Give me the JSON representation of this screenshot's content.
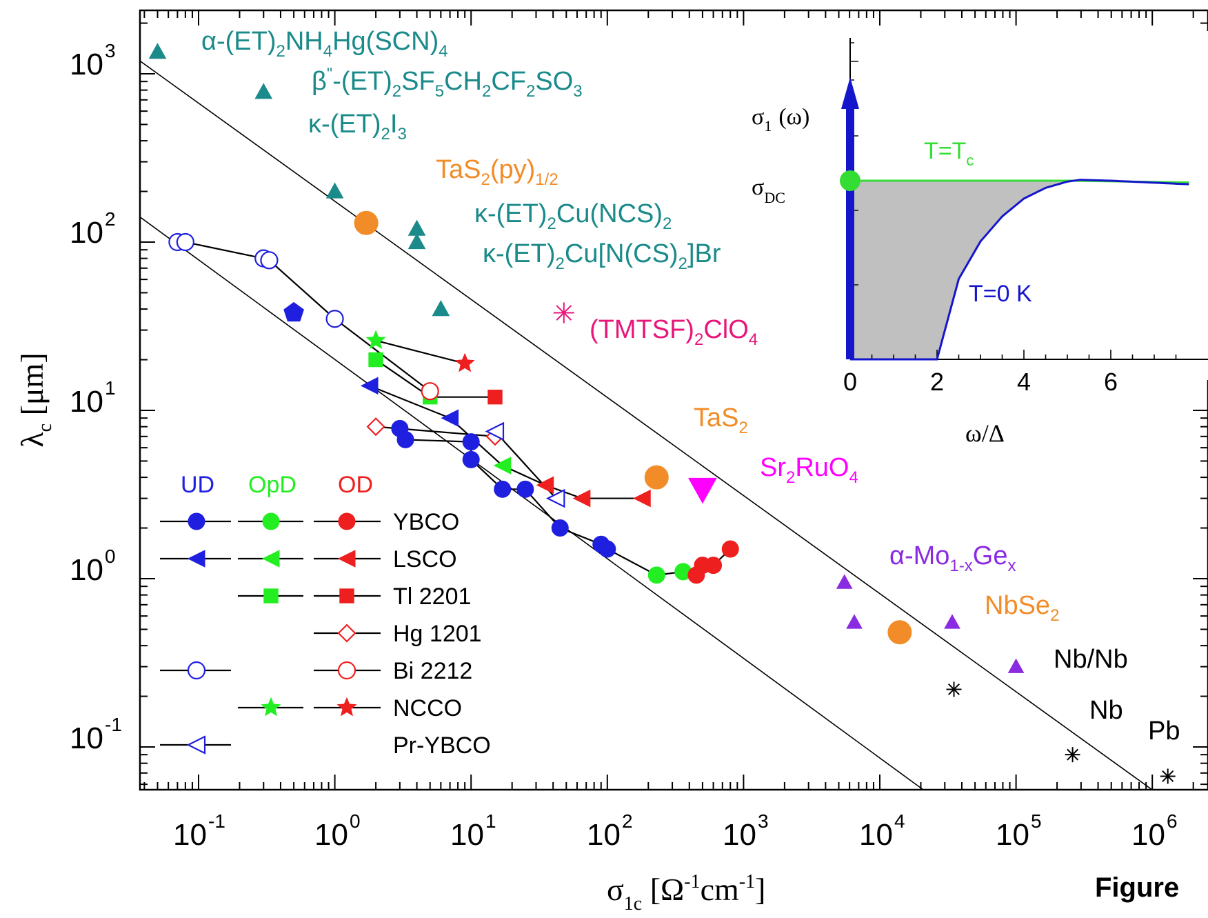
{
  "figure_caption": "Figure",
  "chart_data": [
    {
      "type": "scatter",
      "title": "",
      "xlabel": "σ1c [Ω-1cm-1]",
      "ylabel": "λc [μm]",
      "x_scale": "log",
      "y_scale": "log",
      "xlim": [
        0.03,
        1500000
      ],
      "ylim": [
        0.05,
        2000
      ],
      "x_ticks": [
        "10-1",
        "100",
        "101",
        "102",
        "103",
        "104",
        "105",
        "106"
      ],
      "y_ticks": [
        "10-1",
        "100",
        "101",
        "102",
        "103"
      ],
      "grid": false,
      "colors": {
        "UD": "#1f1fe0",
        "OpD": "#22ee22",
        "OD": "#ee1f1f",
        "organics": "#1a8a8a",
        "TaS": "#f28c28",
        "TMTSF": "#e8157a",
        "Sr2RuO4": "#ff00ff",
        "MoGe": "#8a2be2",
        "elements": "#000000"
      },
      "legend": {
        "placement": "bottom-left",
        "columns": [
          "UD",
          "OpD",
          "OD"
        ],
        "rows": [
          {
            "name": "YBCO",
            "marker": "circle-filled",
            "columns": [
              "UD",
              "OpD",
              "OD"
            ]
          },
          {
            "name": "LSCO",
            "marker": "triangle-left-filled",
            "columns": [
              "UD",
              "OpD",
              "OD"
            ]
          },
          {
            "name": "Tl 2201",
            "marker": "square-filled",
            "columns": [
              "OpD",
              "OD"
            ]
          },
          {
            "name": "Hg 1201",
            "marker": "diamond-open",
            "columns": [
              "OD"
            ]
          },
          {
            "name": "Bi 2212",
            "marker": "circle-open",
            "columns": [
              "UD",
              "OD"
            ]
          },
          {
            "name": "NCCO",
            "marker": "star-filled",
            "columns": [
              "OpD",
              "OD"
            ]
          },
          {
            "name": "Pr-YBCO",
            "marker": "triangle-left-open",
            "columns": [
              "UD"
            ]
          }
        ]
      },
      "guide_lines": [
        {
          "from": [
            0.03,
            1350
          ],
          "to": [
            1200000,
            0.05
          ]
        },
        {
          "from": [
            0.03,
            160
          ],
          "to": [
            25000,
            0.05
          ]
        }
      ],
      "series": [
        {
          "name": "YBCO",
          "marker": "circle-filled",
          "connected": true,
          "points": [
            {
              "x": 3,
              "y": 7.8,
              "doping": "UD"
            },
            {
              "x": 3.3,
              "y": 6.7,
              "doping": "UD"
            },
            {
              "x": 10,
              "y": 6.5,
              "doping": "UD"
            },
            {
              "x": 10,
              "y": 5.1,
              "doping": "UD"
            },
            {
              "x": 17,
              "y": 3.4,
              "doping": "UD"
            },
            {
              "x": 25,
              "y": 3.4,
              "doping": "UD"
            },
            {
              "x": 45,
              "y": 2.0,
              "doping": "UD"
            },
            {
              "x": 90,
              "y": 1.6,
              "doping": "UD"
            },
            {
              "x": 100,
              "y": 1.5,
              "doping": "UD"
            },
            {
              "x": 230,
              "y": 1.05,
              "doping": "OpD"
            },
            {
              "x": 360,
              "y": 1.1,
              "doping": "OpD"
            },
            {
              "x": 450,
              "y": 1.05,
              "doping": "OD"
            },
            {
              "x": 500,
              "y": 1.2,
              "doping": "OD"
            },
            {
              "x": 600,
              "y": 1.2,
              "doping": "OD"
            },
            {
              "x": 800,
              "y": 1.5,
              "doping": "OD"
            }
          ]
        },
        {
          "name": "LSCO",
          "marker": "triangle-left-filled",
          "connected": true,
          "points": [
            {
              "x": 1.8,
              "y": 14,
              "doping": "UD"
            },
            {
              "x": 7,
              "y": 9,
              "doping": "UD"
            },
            {
              "x": 17,
              "y": 4.7,
              "doping": "OpD"
            },
            {
              "x": 35,
              "y": 3.6,
              "doping": "OD"
            },
            {
              "x": 65,
              "y": 3.0,
              "doping": "OD"
            },
            {
              "x": 180,
              "y": 3.0,
              "doping": "OD"
            }
          ]
        },
        {
          "name": "Tl 2201",
          "marker": "square-filled",
          "connected": true,
          "points": [
            {
              "x": 2,
              "y": 20,
              "doping": "OpD"
            },
            {
              "x": 5,
              "y": 12,
              "doping": "OpD"
            },
            {
              "x": 15,
              "y": 12,
              "doping": "OD"
            }
          ]
        },
        {
          "name": "Hg 1201",
          "marker": "diamond-open",
          "connected": true,
          "points": [
            {
              "x": 2,
              "y": 8,
              "doping": "OD"
            },
            {
              "x": 15,
              "y": 7,
              "doping": "OD"
            }
          ]
        },
        {
          "name": "Bi 2212",
          "marker": "circle-open",
          "connected": true,
          "points": [
            {
              "x": 0.07,
              "y": 100,
              "doping": "UD"
            },
            {
              "x": 0.08,
              "y": 100,
              "doping": "UD"
            },
            {
              "x": 0.3,
              "y": 80,
              "doping": "UD"
            },
            {
              "x": 0.33,
              "y": 78,
              "doping": "UD"
            },
            {
              "x": 1,
              "y": 35,
              "doping": "UD"
            },
            {
              "x": 5,
              "y": 13,
              "doping": "OD"
            }
          ]
        },
        {
          "name": "NCCO",
          "marker": "star-filled",
          "connected": true,
          "points": [
            {
              "x": 2,
              "y": 26,
              "doping": "OpD"
            },
            {
              "x": 9,
              "y": 19,
              "doping": "OD"
            }
          ]
        },
        {
          "name": "Pr-YBCO",
          "marker": "triangle-left-open",
          "connected": true,
          "points": [
            {
              "x": 15,
              "y": 7.5,
              "doping": "UD"
            },
            {
              "x": 42,
              "y": 3.0,
              "doping": "UD"
            }
          ]
        },
        {
          "name": "Bi 2212 (pentagon)",
          "marker": "pentagon-filled",
          "connected": false,
          "points": [
            {
              "x": 0.5,
              "y": 38,
              "doping": "UD"
            }
          ]
        },
        {
          "name": "α-(ET)2NH4Hg(SCN)4",
          "marker": "triangle-up-filled",
          "color": "organics",
          "points": [
            {
              "x": 0.05,
              "y": 1350
            }
          ]
        },
        {
          "name": "β''-(ET)2SF5CH2CF2SO3",
          "marker": "triangle-up-filled",
          "color": "organics",
          "points": [
            {
              "x": 0.3,
              "y": 780
            }
          ]
        },
        {
          "name": "κ-(ET)2I3",
          "marker": "triangle-up-filled",
          "color": "organics",
          "points": [
            {
              "x": 1,
              "y": 200
            }
          ]
        },
        {
          "name": "κ-(ET)2Cu(NCS)2",
          "marker": "triangle-up-filled",
          "color": "organics",
          "points": [
            {
              "x": 4,
              "y": 120
            }
          ]
        },
        {
          "name": "κ-(ET)2Cu[N(CS)2]Br",
          "marker": "triangle-up-filled",
          "color": "organics",
          "points": [
            {
              "x": 4,
              "y": 100
            }
          ]
        },
        {
          "name": "organic (unlabeled)",
          "marker": "triangle-up-filled",
          "color": "organics",
          "points": [
            {
              "x": 6,
              "y": 40
            }
          ]
        },
        {
          "name": "TaS2(py)1/2",
          "marker": "circle-filled",
          "color": "TaS",
          "points": [
            {
              "x": 1.7,
              "y": 130
            }
          ]
        },
        {
          "name": "(TMTSF)2ClO4",
          "marker": "asterisk",
          "color": "TMTSF",
          "points": [
            {
              "x": 48,
              "y": 38
            }
          ]
        },
        {
          "name": "TaS2",
          "marker": "circle-filled",
          "color": "TaS",
          "points": [
            {
              "x": 230,
              "y": 4.0
            }
          ]
        },
        {
          "name": "Sr2RuO4",
          "marker": "triangle-down-filled",
          "color": "Sr2RuO4",
          "points": [
            {
              "x": 500,
              "y": 3.4
            }
          ]
        },
        {
          "name": "α-Mo1-xGex",
          "marker": "triangle-up-filled",
          "color": "MoGe",
          "points": [
            {
              "x": 5500,
              "y": 0.95
            },
            {
              "x": 6500,
              "y": 0.55
            },
            {
              "x": 34000,
              "y": 0.55
            }
          ]
        },
        {
          "name": "NbSe2",
          "marker": "circle-filled",
          "color": "TaS",
          "points": [
            {
              "x": 14000,
              "y": 0.48
            }
          ]
        },
        {
          "name": "Nb/Nb",
          "marker": "triangle-up-filled",
          "color": "MoGe",
          "points": [
            {
              "x": 100000,
              "y": 0.3
            }
          ]
        },
        {
          "name": "Nb (unlabeled asterisk)",
          "marker": "asterisk",
          "color": "elements",
          "points": [
            {
              "x": 35000,
              "y": 0.22
            }
          ]
        },
        {
          "name": "Nb",
          "marker": "asterisk",
          "color": "elements",
          "points": [
            {
              "x": 260000,
              "y": 0.09
            }
          ]
        },
        {
          "name": "Pb",
          "marker": "asterisk",
          "color": "elements",
          "points": [
            {
              "x": 1300000,
              "y": 0.067
            }
          ]
        }
      ],
      "annotations": {
        "a1": "α-(ET)",
        "a1s": "2",
        "a1b": "NH",
        "a1s2": "4",
        "a1c": "Hg(SCN)",
        "a1s3": "4",
        "b1": "β",
        "b1p": "''",
        "b1b": "-(ET)",
        "b1s": "2",
        "b1c": "SF",
        "b1s2": "5",
        "b1d": "CH",
        "b1s3": "2",
        "b1e": "CF",
        "b1s4": "2",
        "b1f": "SO",
        "b1s5": "3",
        "k1": "κ-(ET)",
        "k1s": "2",
        "k1b": "I",
        "k1s2": "3",
        "t1": "TaS",
        "t1s": "2",
        "t1b": "(py)",
        "t1s2": "1/2",
        "k2": "κ-(ET)",
        "k2s": "2",
        "k2b": "Cu(NCS)",
        "k2s2": "2",
        "k3": "κ-(ET)",
        "k3s": "2",
        "k3b": "Cu[N(CS)",
        "k3s2": "2",
        "k3c": "]Br",
        "tm": "(TMTSF)",
        "tms": "2",
        "tmb": "ClO",
        "tms2": "4",
        "ta": "TaS",
        "tas": "2",
        "sr": "Sr",
        "srs": "2",
        "srb": "RuO",
        "srs2": "4",
        "mo": "α-Mo",
        "mos": "1-x",
        "mob": "Ge",
        "mos2": "x",
        "nb1": "NbSe",
        "nb1s": "2",
        "nbnb": "Nb/Nb",
        "nb": "Nb",
        "pb": "Pb"
      }
    },
    {
      "type": "line",
      "title": "",
      "xlabel": "ω/Δ",
      "ylabel": "σ1 (ω)",
      "ylabel_parts": {
        "main": "σ",
        "sub": "1",
        "rest": "(ω)"
      },
      "y_marker_label": "σDC",
      "y_marker_parts": {
        "main": "σ",
        "sub": "DC"
      },
      "xlim": [
        0,
        7.8
      ],
      "x_ticks": [
        "0",
        "2",
        "4",
        "6"
      ],
      "placement": "inset top-right",
      "series": [
        {
          "name": "T=Tc",
          "label_parts": {
            "main": "T=T",
            "sub": "c"
          },
          "color": "#33dd33",
          "shape": "flat",
          "points": [
            [
              0,
              1.0
            ],
            [
              5.1,
              1.0
            ],
            [
              7.8,
              0.99
            ]
          ]
        },
        {
          "name": "T=0 K",
          "color": "#1515cc",
          "shape": "gap",
          "gap_edge": 2.0,
          "points": [
            [
              0,
              0
            ],
            [
              2.0,
              0
            ],
            [
              2.5,
              0.45
            ],
            [
              3,
              0.66
            ],
            [
              3.5,
              0.8
            ],
            [
              4,
              0.9
            ],
            [
              4.5,
              0.96
            ],
            [
              5.0,
              0.995
            ],
            [
              5.3,
              1.005
            ],
            [
              6,
              1.0
            ],
            [
              7.8,
              0.98
            ]
          ]
        }
      ],
      "delta_peak": {
        "x": 0,
        "color": "#1515cc",
        "label": "δ-function at ω=0"
      },
      "shaded_region": {
        "between": [
          "T=Tc",
          "T=0 K"
        ],
        "color": "#c0c0c0"
      }
    }
  ]
}
